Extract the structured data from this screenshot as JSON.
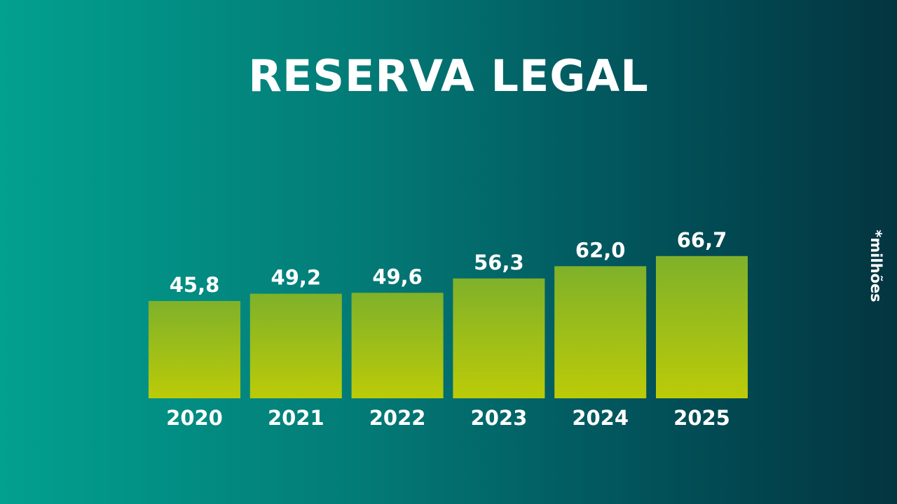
{
  "title": "RESERVA LEGAL",
  "unit_note": "*milhões",
  "chart_data": {
    "type": "bar",
    "title": "RESERVA LEGAL",
    "categories": [
      "2020",
      "2021",
      "2022",
      "2023",
      "2024",
      "2025"
    ],
    "values": [
      45.8,
      49.2,
      49.6,
      56.3,
      62.0,
      66.7
    ],
    "value_labels": [
      "45,8",
      "49,2",
      "49,6",
      "56,3",
      "62,0",
      "66,7"
    ],
    "xlabel": "",
    "ylabel": "",
    "grid": false,
    "legend": "none",
    "colors": {
      "bar_top": "#7fb12a",
      "bar_bottom": "#bccb08",
      "text": "#ffffff"
    }
  }
}
